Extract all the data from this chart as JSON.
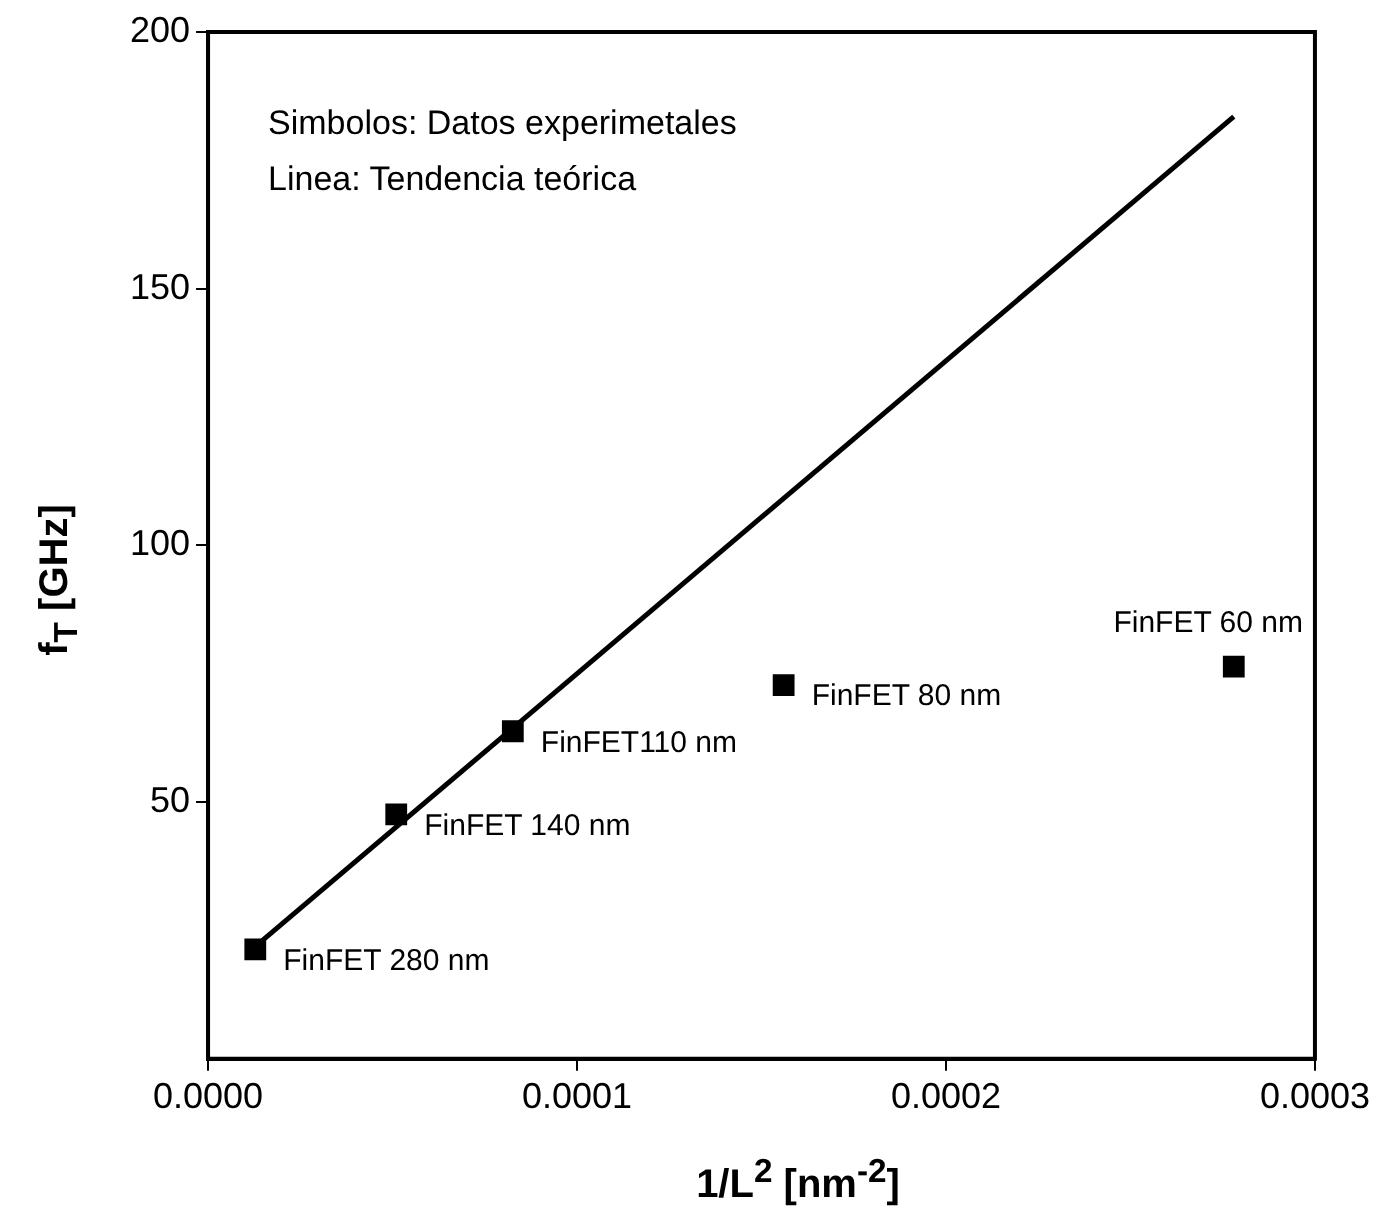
{
  "chart_data": {
    "type": "scatter",
    "xlabel": "1/L$^{2}$ [nm$^{-2}$]",
    "ylabel": "f$_{T}$ [GHz]",
    "xlim": [
      0,
      0.0003
    ],
    "xticks": [
      {
        "value": 0,
        "label": "0.0000"
      },
      {
        "value": 0.0001,
        "label": "0.0001"
      },
      {
        "value": 0.0002,
        "label": "0.0002"
      },
      {
        "value": 0.0003,
        "label": "0.0003"
      }
    ],
    "ylim": [
      0,
      200
    ],
    "yticks": [
      50,
      100,
      150,
      200
    ],
    "grid": false,
    "legend": false,
    "marker": "square",
    "series": [
      {
        "color": "#000000",
        "x": [
          1.28e-05,
          5.1e-05,
          8.26e-05,
          0.000156,
          0.000278
        ],
        "values": [
          21.3,
          47.6,
          63.8,
          72.8,
          76.4
        ]
      },
      {
        "type": "line",
        "color": "#000000",
        "marker": "none",
        "line_style": "solid",
        "x": [
          1.3e-05,
          0.000278
        ],
        "values": [
          22,
          183.5
        ]
      }
    ],
    "annotations": [
      "Simbolos: Datos experimetales",
      "Linea: Tendencia teórica",
      {
        "text": "FinFET 280 nm",
        "x": 1.28e-05,
        "y": 21.3
      },
      {
        "text": "FinFET 140 nm",
        "x": 5.1e-05,
        "y": 47.6
      },
      {
        "text": "FinFET110 nm",
        "x": 8.26e-05,
        "y": 63.8
      },
      {
        "text": "FinFET 80 nm",
        "x": 0.000156,
        "y": 72.8
      },
      {
        "text": "FinFET 60 nm",
        "x": 0.000278,
        "y": 76.4
      }
    ]
  }
}
